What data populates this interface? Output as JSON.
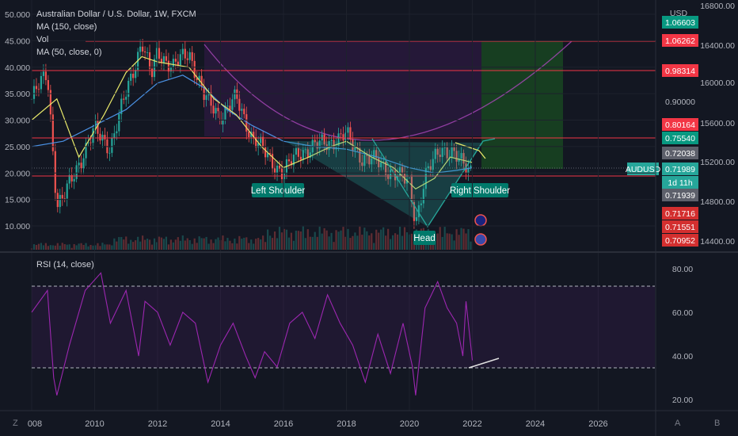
{
  "legend": {
    "title": "Australian Dollar / U.S. Dollar, 1W, FXCM",
    "ma150": "MA (150, close)",
    "vol": "Vol",
    "ma50": "MA (50, close, 0)",
    "rsi": "RSI (14, close)"
  },
  "currency": "USD",
  "corner": {
    "left": "Z",
    "auto": "A",
    "base": "B"
  },
  "colors": {
    "background": "#131722",
    "grid": "#1e222d",
    "up": "#26a69a",
    "down": "#ef5350",
    "ma50": "#e8e86a",
    "ma150": "#4a90e2",
    "rsi": "#9c27b0",
    "resistance": "#f23645",
    "pattern": "#26a69a",
    "target_zone": "#1b5e20",
    "arc": "#ab47bc"
  },
  "annotations": {
    "left_shoulder": "Left Shoulder",
    "head": "Head",
    "right_shoulder": "Right Shoulder",
    "symbol_tag": "AUDUSD",
    "countdown": "1d 11h"
  },
  "chart_data": [
    {
      "type": "candlestick",
      "title": "Australian Dollar / U.S. Dollar, 1W, FXCM",
      "x_ticks": [
        "008",
        "2010",
        "2012",
        "2014",
        "2016",
        "2018",
        "2020",
        "2022",
        "2024",
        "2026"
      ],
      "xlim": [
        2008.0,
        2027.8
      ],
      "y_ticks_price": [
        "1.06603",
        "1.06262",
        "0.98314",
        "0.90000",
        "0.80164",
        "0.75540",
        "0.72038",
        "0.71989",
        "0.71939",
        "0.71716",
        "0.71551",
        "0.70952"
      ],
      "y_ticks_left": [
        "50.000",
        "45.000",
        "40.000",
        "35.000",
        "30.000",
        "25.000",
        "20.000",
        "15.000",
        "10.000"
      ],
      "y_ticks_right": [
        "16800.00",
        "16400.00",
        "16000.00",
        "15600.00",
        "15200.00",
        "14800.00",
        "14400.00"
      ],
      "close_path": [
        [
          2008.0,
          34
        ],
        [
          2008.5,
          39
        ],
        [
          2008.8,
          14
        ],
        [
          2009.0,
          15
        ],
        [
          2009.5,
          22
        ],
        [
          2010.0,
          28
        ],
        [
          2010.5,
          25
        ],
        [
          2011.0,
          35
        ],
        [
          2011.5,
          45
        ],
        [
          2011.8,
          38
        ],
        [
          2012.0,
          43
        ],
        [
          2012.5,
          40
        ],
        [
          2013.0,
          43
        ],
        [
          2013.5,
          34
        ],
        [
          2014.0,
          31
        ],
        [
          2014.5,
          34
        ],
        [
          2015.0,
          27
        ],
        [
          2015.5,
          23
        ],
        [
          2016.0,
          20
        ],
        [
          2016.5,
          24
        ],
        [
          2017.0,
          25
        ],
        [
          2017.5,
          26
        ],
        [
          2018.0,
          27
        ],
        [
          2018.5,
          23
        ],
        [
          2019.0,
          22
        ],
        [
          2019.5,
          20
        ],
        [
          2020.0,
          18
        ],
        [
          2020.2,
          11
        ],
        [
          2020.5,
          19
        ],
        [
          2021.0,
          25
        ],
        [
          2021.3,
          24
        ],
        [
          2021.6,
          22
        ],
        [
          2021.9,
          21
        ],
        [
          2022.0,
          21
        ]
      ],
      "series": [
        {
          "name": "MA (50, close, 0)",
          "values": [
            [
              2008.0,
              30
            ],
            [
              2008.8,
              34
            ],
            [
              2009.5,
              23
            ],
            [
              2010.3,
              31
            ],
            [
              2011.0,
              39
            ],
            [
              2011.5,
              42
            ],
            [
              2012.0,
              41
            ],
            [
              2013.0,
              40
            ],
            [
              2013.8,
              34
            ],
            [
              2014.5,
              31
            ],
            [
              2015.3,
              25
            ],
            [
              2016.0,
              21
            ],
            [
              2016.8,
              23
            ],
            [
              2017.5,
              25
            ],
            [
              2018.0,
              26
            ],
            [
              2018.8,
              23
            ],
            [
              2019.5,
              21
            ],
            [
              2020.2,
              17
            ],
            [
              2020.8,
              19
            ],
            [
              2021.3,
              23
            ],
            [
              2022.0,
              22
            ]
          ]
        },
        {
          "name": "MA (150, close)",
          "values": [
            [
              2008.0,
              25
            ],
            [
              2009.0,
              26
            ],
            [
              2010.0,
              29
            ],
            [
              2011.0,
              32
            ],
            [
              2012.0,
              37
            ],
            [
              2012.8,
              38.5
            ],
            [
              2013.5,
              36
            ],
            [
              2014.2,
              32
            ],
            [
              2015.0,
              29
            ],
            [
              2016.0,
              26
            ],
            [
              2017.0,
              25
            ],
            [
              2018.0,
              24.5
            ],
            [
              2019.0,
              23
            ],
            [
              2020.0,
              21
            ],
            [
              2020.8,
              20
            ],
            [
              2021.5,
              20.5
            ],
            [
              2022.0,
              21
            ]
          ]
        },
        {
          "name": "RSI (14, close)",
          "values": [
            [
              2008.0,
              60
            ],
            [
              2008.5,
              70
            ],
            [
              2008.7,
              30
            ],
            [
              2008.8,
              22
            ],
            [
              2009.2,
              45
            ],
            [
              2009.7,
              70
            ],
            [
              2010.2,
              78
            ],
            [
              2010.5,
              55
            ],
            [
              2011.0,
              70
            ],
            [
              2011.4,
              40
            ],
            [
              2011.6,
              65
            ],
            [
              2012.0,
              60
            ],
            [
              2012.4,
              45
            ],
            [
              2012.8,
              60
            ],
            [
              2013.2,
              55
            ],
            [
              2013.6,
              28
            ],
            [
              2014.0,
              45
            ],
            [
              2014.4,
              55
            ],
            [
              2014.8,
              40
            ],
            [
              2015.1,
              30
            ],
            [
              2015.4,
              42
            ],
            [
              2015.8,
              35
            ],
            [
              2016.2,
              55
            ],
            [
              2016.6,
              60
            ],
            [
              2017.0,
              48
            ],
            [
              2017.4,
              68
            ],
            [
              2017.8,
              55
            ],
            [
              2018.2,
              45
            ],
            [
              2018.6,
              28
            ],
            [
              2019.0,
              50
            ],
            [
              2019.4,
              32
            ],
            [
              2019.8,
              55
            ],
            [
              2020.1,
              35
            ],
            [
              2020.2,
              22
            ],
            [
              2020.5,
              62
            ],
            [
              2020.7,
              68
            ],
            [
              2020.9,
              74
            ],
            [
              2021.2,
              62
            ],
            [
              2021.5,
              55
            ],
            [
              2021.7,
              40
            ],
            [
              2021.8,
              65
            ],
            [
              2022.0,
              38
            ]
          ],
          "ylim": [
            15,
            85
          ],
          "y_ticks": [
            "80.00",
            "60.00",
            "40.00",
            "20.00"
          ],
          "levels": [
            70,
            30
          ]
        }
      ],
      "levels_price": [
        "1.06262",
        "0.98314",
        "0.75540",
        "0.71939"
      ]
    }
  ]
}
